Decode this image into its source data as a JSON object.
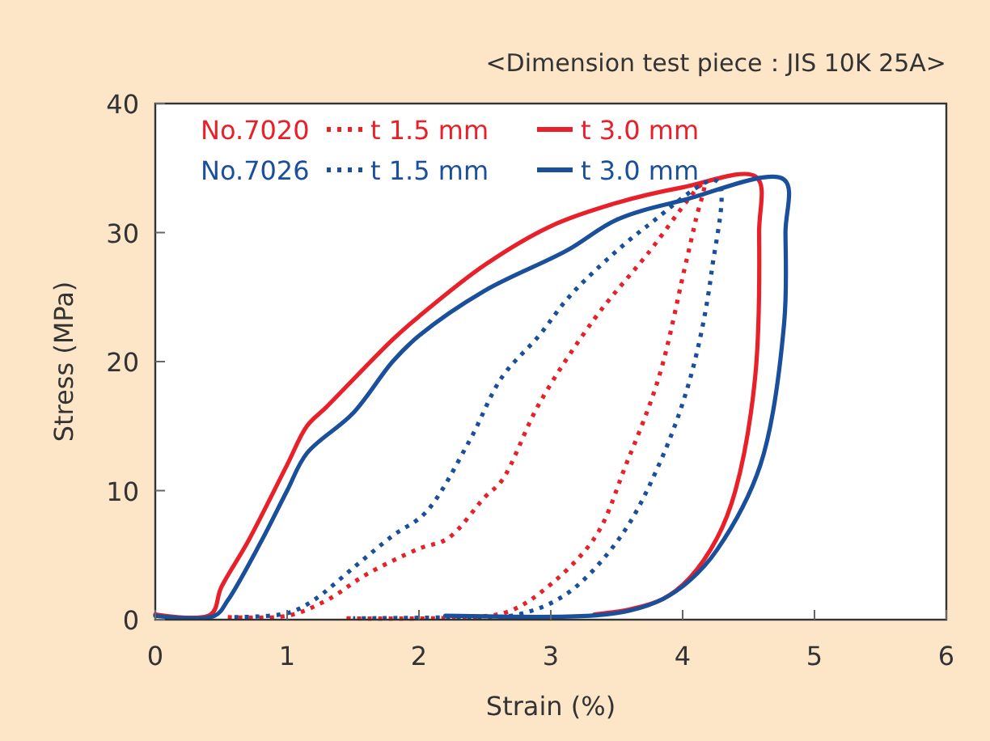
{
  "chart_data": {
    "type": "line",
    "title": "<Dimension test piece：JIS 10K 25A>",
    "xlabel": "Strain (%)",
    "ylabel": "Stress (MPa)",
    "xlim": [
      0,
      6
    ],
    "xticks": [
      0,
      1,
      2,
      3,
      4,
      5,
      6
    ],
    "ylim": [
      0,
      40
    ],
    "yticks": [
      0,
      10,
      20,
      30,
      40
    ],
    "grid": false,
    "legend": "top left",
    "annotations": [
      "No.7020",
      "No.7026"
    ],
    "series": [
      {
        "name": "t 1.5 mm",
        "color": "#e8202a",
        "line_style": "dotted",
        "x": [
          0.55,
          1.0,
          1.3,
          1.6,
          2.0,
          2.22,
          2.5,
          2.63,
          2.91,
          3.33,
          3.73,
          4.16,
          4.1,
          4.01,
          3.82,
          3.57,
          3.33,
          2.91,
          2.67,
          2.4,
          1.45
        ],
        "values": [
          0.2,
          0.3,
          1.5,
          3.5,
          5.5,
          6.3,
          9.5,
          10.8,
          16.7,
          23.3,
          28.3,
          33.8,
          31,
          27,
          18.8,
          12,
          6.3,
          2,
          0.6,
          0.2,
          0.1
        ]
      },
      {
        "name": "t 3.0 mm",
        "color": "#e8202a",
        "line_style": "solid",
        "x": [
          0,
          0.42,
          0.5,
          0.7,
          1.0,
          1.15,
          1.3,
          1.8,
          2.0,
          2.5,
          3.0,
          3.5,
          4.0,
          4.56,
          4.58,
          4.55,
          4.4,
          4.26,
          4.05,
          3.85,
          3.6,
          3.33
        ],
        "values": [
          0.4,
          0.4,
          2.5,
          6,
          12,
          15,
          16.5,
          21.7,
          23.5,
          27.5,
          30.5,
          32.3,
          33.5,
          34.3,
          30,
          18.8,
          10,
          6.3,
          3.2,
          1.6,
          0.8,
          0.4
        ]
      },
      {
        "name": "t 1.5 mm",
        "color": "#1a4f9c",
        "line_style": "dotted",
        "x": [
          0.6,
          1.0,
          1.2,
          1.5,
          1.8,
          2.05,
          2.38,
          2.63,
          2.91,
          3.12,
          3.33,
          3.73,
          4.26,
          4.22,
          4.06,
          3.82,
          3.52,
          3.12,
          2.75,
          2.3,
          1.5
        ],
        "values": [
          0.2,
          0.5,
          1.5,
          4,
          6.5,
          8.3,
          13.8,
          18.8,
          22,
          24.8,
          27,
          30.5,
          34,
          27,
          18.8,
          12,
          6.3,
          2,
          0.4,
          0.2,
          0.1
        ]
      },
      {
        "name": "t 3.0 mm",
        "color": "#1a4f9c",
        "line_style": "solid",
        "x": [
          0,
          0.45,
          0.55,
          0.8,
          1.0,
          1.15,
          1.5,
          1.8,
          2.0,
          2.5,
          3.12,
          3.5,
          4.0,
          4.77,
          4.78,
          4.77,
          4.59,
          4.26,
          4.05,
          3.85,
          3.6,
          3.3,
          2.2
        ],
        "values": [
          0.3,
          0.3,
          1.5,
          6,
          10,
          12.9,
          16,
          20,
          22,
          25.5,
          28.6,
          31,
          32.5,
          34.1,
          30,
          23,
          12,
          5.4,
          3,
          1.6,
          0.7,
          0.3,
          0.3
        ]
      }
    ]
  }
}
